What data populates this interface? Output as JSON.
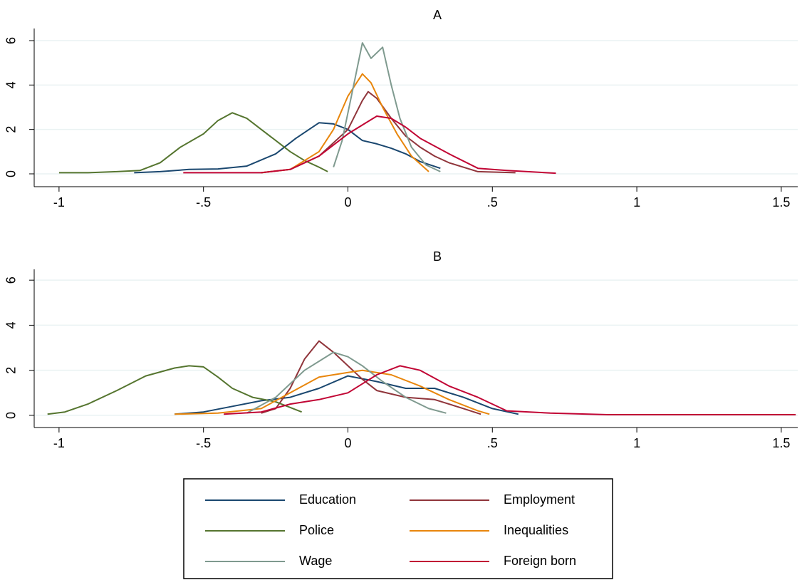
{
  "chart_data": [
    {
      "type": "line",
      "title": "A",
      "xlim": [
        -1.086,
        1.557
      ],
      "xticks": [
        -1,
        {
          "value": -0.5,
          "label": "-.5"
        },
        0,
        {
          "value": 0.5,
          "label": ".5"
        },
        1,
        1.5
      ],
      "ylim": [
        -0.578,
        6.545
      ],
      "yticks": [
        0,
        2,
        4,
        6
      ],
      "grid": true,
      "series": [
        {
          "name": "Education",
          "color": "#1a476f",
          "x": [
            -0.74,
            -0.65,
            -0.55,
            -0.45,
            -0.35,
            -0.25,
            -0.18,
            -0.1,
            -0.05,
            0,
            0.05,
            0.1,
            0.15,
            0.2,
            0.25,
            0.32
          ],
          "values": [
            0.05,
            0.1,
            0.2,
            0.22,
            0.35,
            0.9,
            1.6,
            2.3,
            2.25,
            2.0,
            1.5,
            1.35,
            1.15,
            0.9,
            0.55,
            0.25
          ]
        },
        {
          "name": "Employment",
          "color": "#90353b",
          "x": [
            -0.3,
            -0.2,
            -0.1,
            0,
            0.05,
            0.07,
            0.1,
            0.15,
            0.2,
            0.25,
            0.3,
            0.35,
            0.45,
            0.58
          ],
          "values": [
            0.05,
            0.2,
            0.8,
            2.0,
            3.3,
            3.7,
            3.4,
            2.5,
            1.7,
            1.2,
            0.8,
            0.5,
            0.1,
            0.05
          ]
        },
        {
          "name": "Police",
          "color": "#55752f",
          "x": [
            -1,
            -0.9,
            -0.8,
            -0.72,
            -0.65,
            -0.58,
            -0.5,
            -0.45,
            -0.4,
            -0.35,
            -0.3,
            -0.25,
            -0.2,
            -0.15,
            -0.1,
            -0.07
          ],
          "values": [
            0.05,
            0.05,
            0.1,
            0.15,
            0.5,
            1.2,
            1.8,
            2.4,
            2.75,
            2.5,
            2.0,
            1.5,
            1.0,
            0.6,
            0.3,
            0.1
          ]
        },
        {
          "name": "Inequalities",
          "color": "#e8860c",
          "x": [
            -0.3,
            -0.2,
            -0.1,
            -0.05,
            0,
            0.05,
            0.08,
            0.12,
            0.17,
            0.22,
            0.28
          ],
          "values": [
            0.05,
            0.2,
            1.0,
            2.0,
            3.5,
            4.5,
            4.1,
            3.0,
            1.8,
            0.8,
            0.1
          ]
        },
        {
          "name": "Wage",
          "color": "#7f9a8f",
          "x": [
            -0.05,
            -0.02,
            0.02,
            0.05,
            0.08,
            0.12,
            0.15,
            0.18,
            0.22,
            0.27,
            0.32
          ],
          "values": [
            0.3,
            1.5,
            4.0,
            5.9,
            5.2,
            5.7,
            4.0,
            2.5,
            1.2,
            0.4,
            0.1
          ]
        },
        {
          "name": "Foreign born",
          "color": "#c10534",
          "x": [
            -0.57,
            -0.4,
            -0.3,
            -0.2,
            -0.1,
            0,
            0.05,
            0.1,
            0.15,
            0.2,
            0.25,
            0.35,
            0.45,
            0.55,
            0.72
          ],
          "values": [
            0.05,
            0.05,
            0.05,
            0.2,
            0.8,
            1.8,
            2.2,
            2.6,
            2.5,
            2.1,
            1.6,
            0.9,
            0.25,
            0.15,
            0.03
          ]
        }
      ]
    },
    {
      "type": "line",
      "title": "B",
      "xlim": [
        -1.086,
        1.557
      ],
      "xticks": [
        -1,
        {
          "value": -0.5,
          "label": "-.5"
        },
        0,
        {
          "value": 0.5,
          "label": ".5"
        },
        1,
        1.5
      ],
      "ylim": [
        -0.54,
        6.48
      ],
      "yticks": [
        0,
        2,
        4,
        6
      ],
      "grid": true,
      "series": [
        {
          "color": "#1a476f",
          "x": [
            -0.6,
            -0.5,
            -0.4,
            -0.3,
            -0.2,
            -0.1,
            0,
            0.1,
            0.2,
            0.3,
            0.4,
            0.5,
            0.59
          ],
          "values": [
            0.05,
            0.15,
            0.4,
            0.65,
            0.8,
            1.2,
            1.75,
            1.5,
            1.2,
            1.2,
            0.8,
            0.3,
            0.05
          ]
        },
        {
          "color": "#90353b",
          "x": [
            -0.3,
            -0.25,
            -0.2,
            -0.15,
            -0.1,
            -0.05,
            0,
            0.05,
            0.1,
            0.2,
            0.3,
            0.4,
            0.46
          ],
          "values": [
            0.1,
            0.3,
            1.2,
            2.5,
            3.3,
            2.8,
            2.2,
            1.6,
            1.1,
            0.8,
            0.7,
            0.3,
            0.05
          ]
        },
        {
          "color": "#55752f",
          "x": [
            -1.04,
            -0.98,
            -0.9,
            -0.8,
            -0.7,
            -0.6,
            -0.55,
            -0.5,
            -0.45,
            -0.4,
            -0.33,
            -0.25,
            -0.16
          ],
          "values": [
            0.05,
            0.15,
            0.5,
            1.1,
            1.75,
            2.1,
            2.2,
            2.15,
            1.7,
            1.2,
            0.8,
            0.6,
            0.15
          ]
        },
        {
          "color": "#e8860c",
          "x": [
            -0.6,
            -0.45,
            -0.3,
            -0.2,
            -0.1,
            0,
            0.05,
            0.15,
            0.25,
            0.35,
            0.45,
            0.49
          ],
          "values": [
            0.05,
            0.1,
            0.3,
            1.0,
            1.7,
            1.9,
            2.0,
            1.8,
            1.3,
            0.7,
            0.2,
            0.05
          ]
        },
        {
          "color": "#7f9a8f",
          "x": [
            -0.35,
            -0.25,
            -0.15,
            -0.05,
            0,
            0.05,
            0.12,
            0.2,
            0.28,
            0.34
          ],
          "values": [
            0.1,
            0.8,
            2.0,
            2.8,
            2.6,
            2.2,
            1.5,
            0.8,
            0.3,
            0.1
          ]
        },
        {
          "color": "#c10534",
          "x": [
            -0.43,
            -0.3,
            -0.2,
            -0.1,
            0,
            0.1,
            0.18,
            0.25,
            0.35,
            0.45,
            0.55,
            0.7,
            0.9,
            1.2,
            1.55
          ],
          "values": [
            0.05,
            0.15,
            0.5,
            0.7,
            1.0,
            1.8,
            2.2,
            2.0,
            1.3,
            0.8,
            0.2,
            0.1,
            0.03,
            0.03,
            0.03
          ]
        }
      ]
    }
  ]
}
